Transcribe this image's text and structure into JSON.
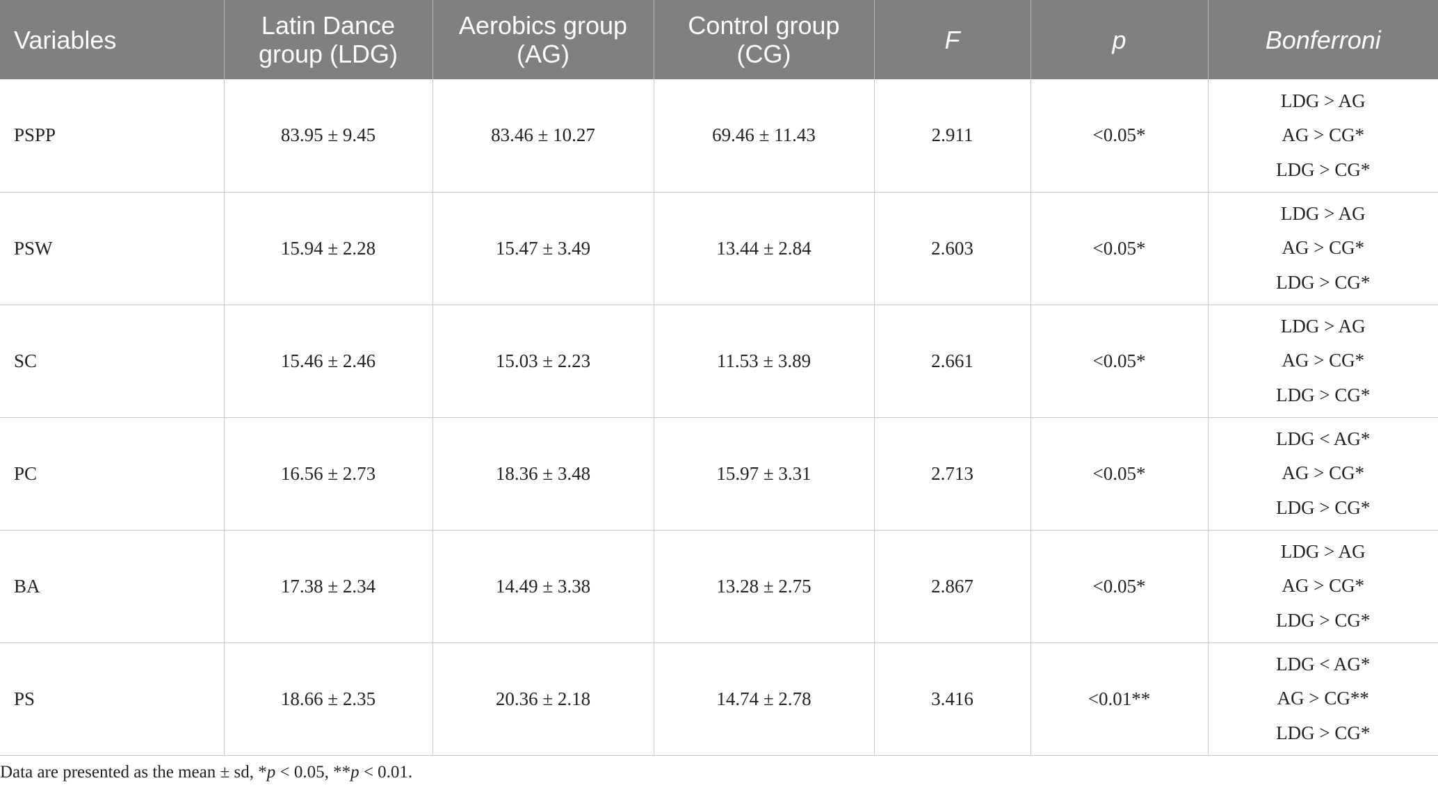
{
  "table": {
    "headers": [
      "Variables",
      "Latin Dance group (LDG)",
      "Aerobics group (AG)",
      "Control group (CG)",
      "F",
      "p",
      "Bonferroni"
    ],
    "rows": [
      {
        "variable": "PSPP",
        "ldg": "83.95 ± 9.45",
        "ag": "83.46 ± 10.27",
        "cg": "69.46 ± 11.43",
        "f": "2.911",
        "p": "<0.05*",
        "bonferroni": [
          "LDG > AG",
          "AG > CG*",
          "LDG > CG*"
        ]
      },
      {
        "variable": "PSW",
        "ldg": "15.94 ± 2.28",
        "ag": "15.47 ± 3.49",
        "cg": "13.44 ± 2.84",
        "f": "2.603",
        "p": "<0.05*",
        "bonferroni": [
          "LDG > AG",
          "AG > CG*",
          "LDG > CG*"
        ]
      },
      {
        "variable": "SC",
        "ldg": "15.46 ± 2.46",
        "ag": "15.03 ± 2.23",
        "cg": "11.53 ± 3.89",
        "f": "2.661",
        "p": "<0.05*",
        "bonferroni": [
          "LDG > AG",
          "AG > CG*",
          "LDG > CG*"
        ]
      },
      {
        "variable": "PC",
        "ldg": "16.56 ± 2.73",
        "ag": "18.36 ± 3.48",
        "cg": "15.97 ± 3.31",
        "f": "2.713",
        "p": "<0.05*",
        "bonferroni": [
          "LDG < AG*",
          "AG > CG*",
          "LDG > CG*"
        ]
      },
      {
        "variable": "BA",
        "ldg": "17.38 ± 2.34",
        "ag": "14.49 ± 3.38",
        "cg": "13.28 ± 2.75",
        "f": "2.867",
        "p": "<0.05*",
        "bonferroni": [
          "LDG > AG",
          "AG > CG*",
          "LDG > CG*"
        ]
      },
      {
        "variable": "PS",
        "ldg": "18.66 ± 2.35",
        "ag": "20.36 ± 2.18",
        "cg": "14.74 ± 2.78",
        "f": "3.416",
        "p": "<0.01**",
        "bonferroni": [
          "LDG < AG*",
          "AG > CG**",
          "LDG > CG*"
        ]
      }
    ]
  },
  "footnote": {
    "prefix": "Data are presented as the mean ± sd, *",
    "p1": "p",
    "mid": " < 0.05, **",
    "p2": "p",
    "suffix": " < 0.01."
  }
}
